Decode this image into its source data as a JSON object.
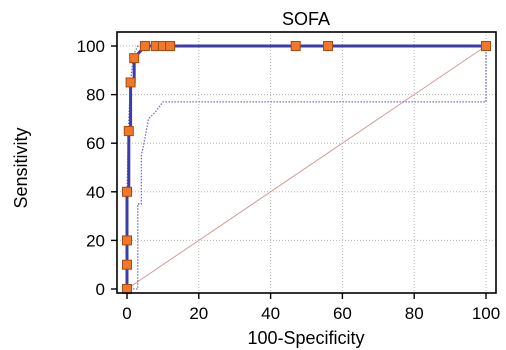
{
  "chart_data": {
    "type": "line",
    "title": "SOFA",
    "xlabel": "100-Specificity",
    "ylabel": "Sensitivity",
    "xlim": [
      0,
      100
    ],
    "ylim": [
      0,
      100
    ],
    "xticks": [
      0,
      20,
      40,
      60,
      80,
      100
    ],
    "yticks": [
      0,
      20,
      40,
      60,
      80,
      100
    ],
    "grid": true,
    "colors": {
      "roc": "#3c3caa",
      "ci": "#6e6ed2",
      "reference": "#d49a9a",
      "marker_fill": "#f07828",
      "marker_stroke": "#a84a10",
      "grid": "#b4b4b4"
    },
    "series": [
      {
        "role": "roc",
        "style": "solid",
        "x": [
          0,
          0,
          0,
          0,
          0.5,
          0.5,
          1,
          1,
          2,
          2,
          5,
          8,
          10,
          12,
          47,
          56,
          100
        ],
        "y": [
          0,
          10,
          20,
          40,
          40,
          65,
          65,
          85,
          85,
          95,
          100,
          100,
          100,
          100,
          100,
          100,
          100
        ]
      },
      {
        "role": "ci-upper",
        "style": "dotted",
        "x": [
          0,
          0,
          0.5,
          1,
          1.5,
          2,
          3,
          100
        ],
        "y": [
          0,
          40,
          70,
          85,
          92,
          97,
          100,
          100
        ]
      },
      {
        "role": "ci-lower",
        "style": "dotted",
        "x": [
          0,
          3,
          3,
          4,
          4,
          5,
          6,
          8,
          10,
          12,
          100,
          100
        ],
        "y": [
          0,
          0,
          35,
          35,
          55,
          62,
          70,
          73,
          77,
          77,
          77,
          100
        ]
      },
      {
        "role": "reference",
        "style": "thin",
        "x": [
          0,
          100
        ],
        "y": [
          0,
          100
        ]
      }
    ],
    "markers": {
      "x": [
        0,
        0,
        0,
        0,
        0.5,
        1,
        2,
        5,
        8,
        10,
        12,
        47,
        56,
        100
      ],
      "y": [
        0,
        10,
        20,
        40,
        65,
        85,
        95,
        100,
        100,
        100,
        100,
        100,
        100,
        100
      ]
    }
  }
}
